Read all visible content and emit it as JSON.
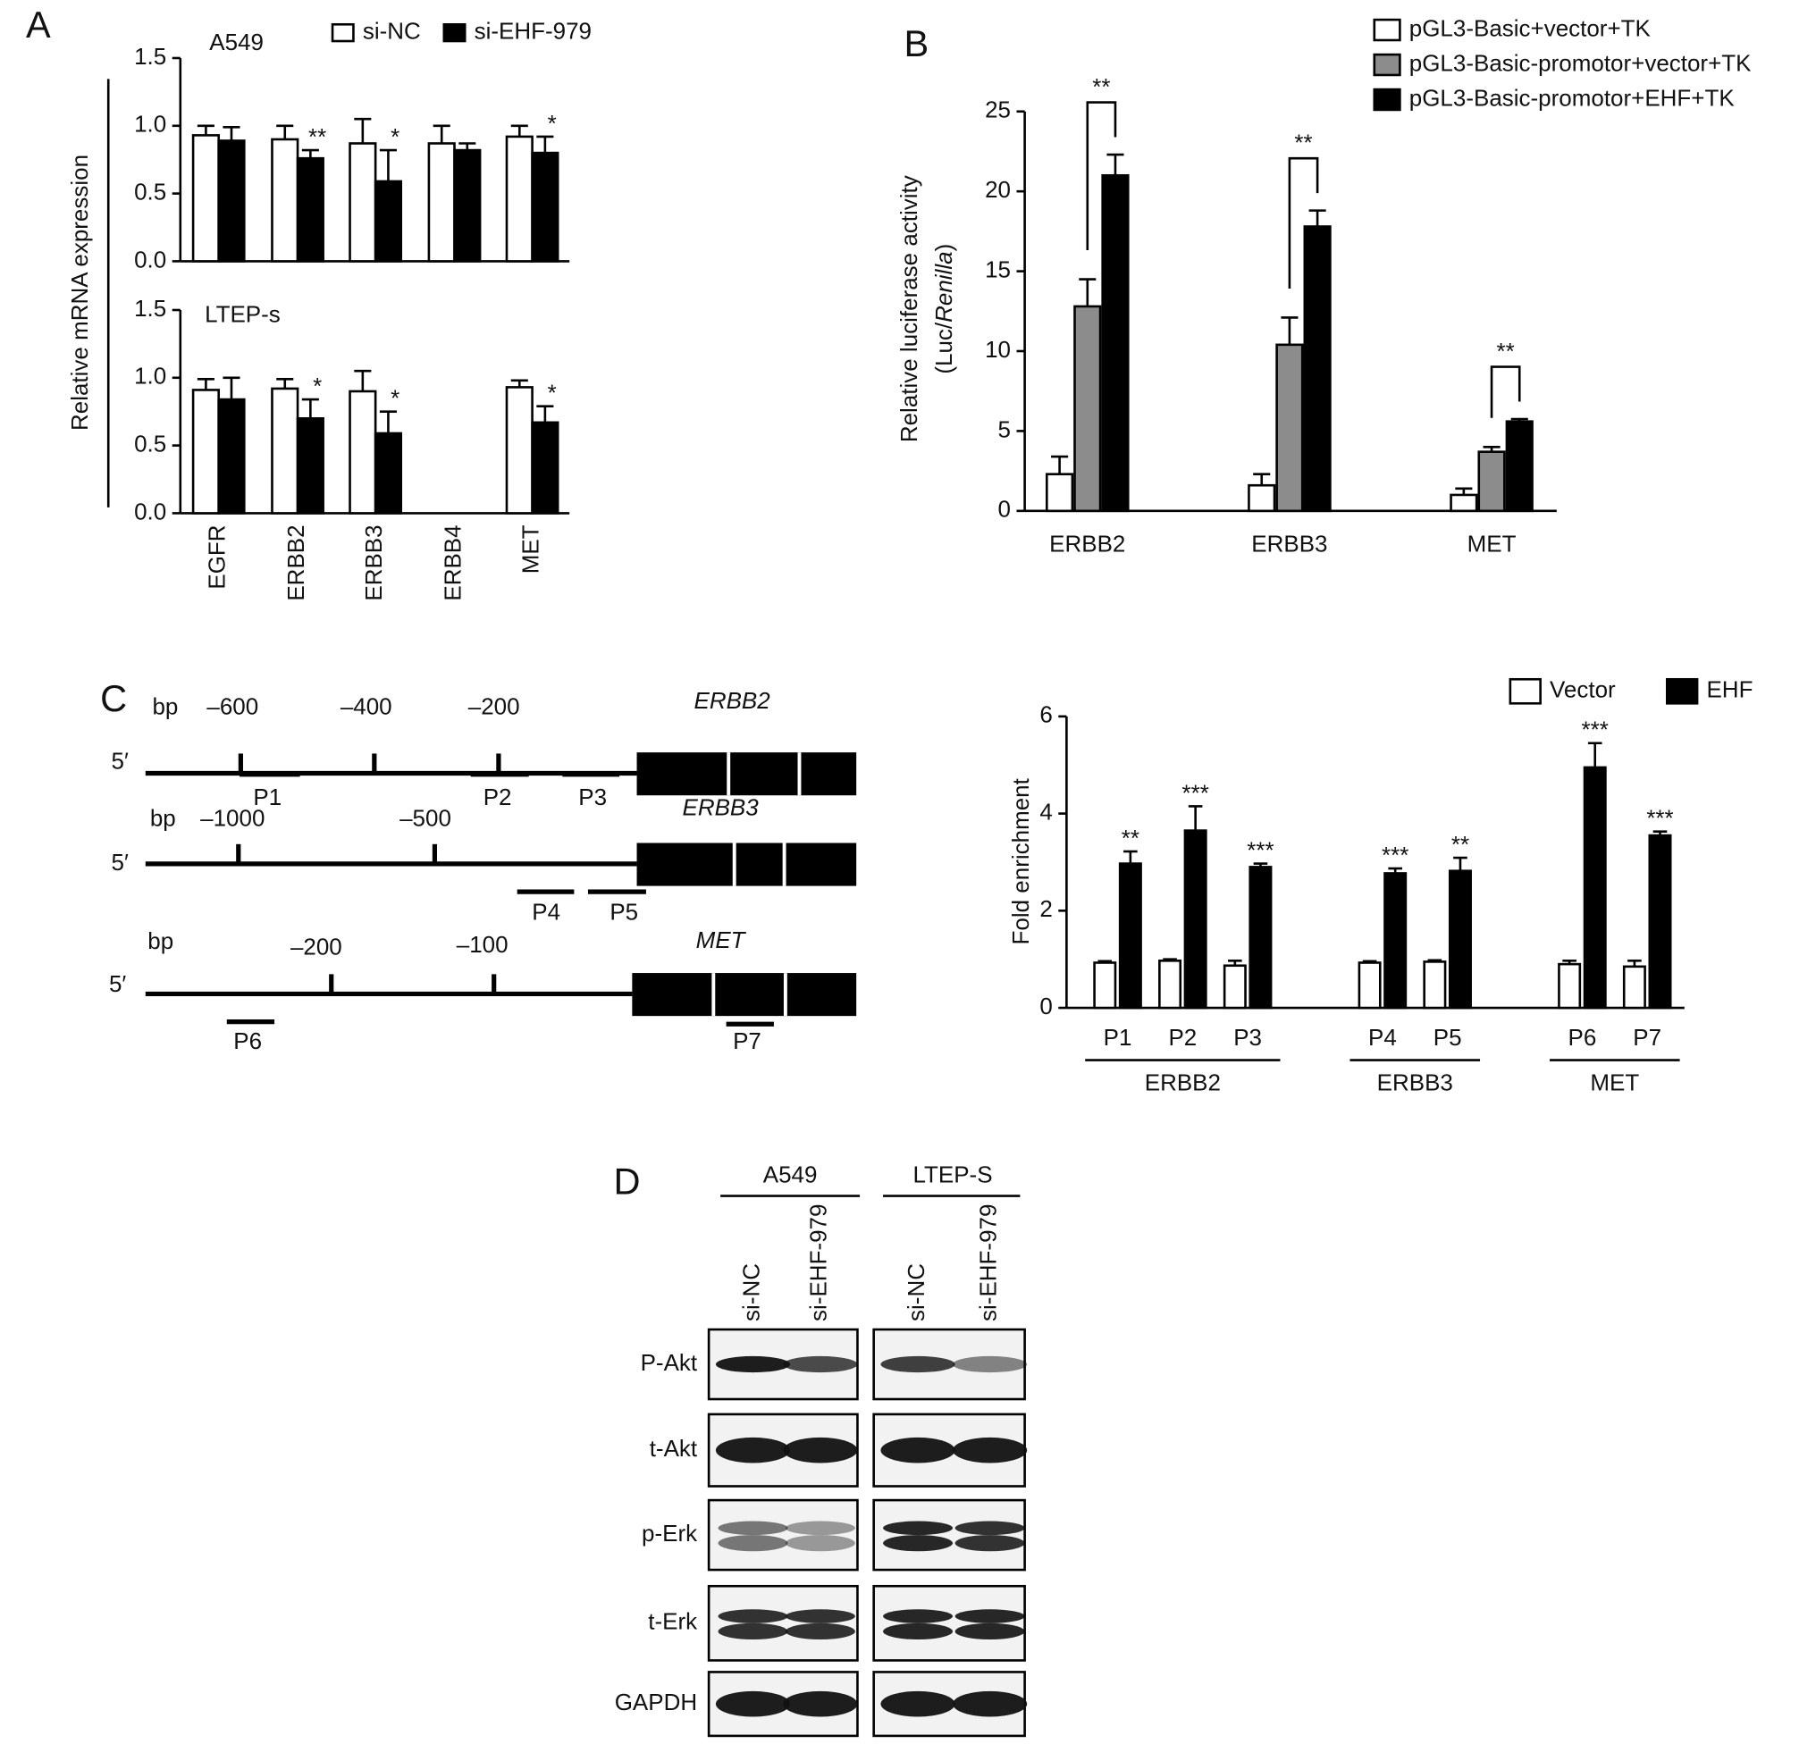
{
  "panel_labels": [
    "A",
    "B",
    "C",
    "D"
  ],
  "chart_data": [
    {
      "type": "bar",
      "title": "A549",
      "ylabel": "Relative mRNA expression",
      "series": [
        {
          "name": "si-NC",
          "color": "#ffffff",
          "values": [
            0.93,
            0.9,
            0.87,
            0.87,
            0.92
          ],
          "errors": [
            0.07,
            0.1,
            0.18,
            0.13,
            0.08
          ]
        },
        {
          "name": "si-EHF-979",
          "color": "#000000",
          "values": [
            0.89,
            0.76,
            0.59,
            0.82,
            0.8
          ],
          "errors": [
            0.1,
            0.06,
            0.23,
            0.05,
            0.12
          ]
        }
      ],
      "significance": [
        null,
        "**",
        "*",
        null,
        "*"
      ],
      "ylim": [
        0,
        1.5
      ],
      "yticks": [
        {
          "value": 0,
          "label": "0.0"
        },
        0.5,
        {
          "value": 1,
          "label": "1.0"
        },
        1.5
      ]
    },
    {
      "type": "bar",
      "title": "LTEP-s",
      "categories": [
        "EGFR",
        "ERBB2",
        "ERBB3",
        "ERBB4",
        "MET"
      ],
      "series": [
        {
          "color": "#ffffff",
          "values": [
            0.91,
            0.92,
            0.9,
            null,
            0.93
          ],
          "errors": [
            0.08,
            0.07,
            0.15,
            null,
            0.05
          ]
        },
        {
          "color": "#000000",
          "values": [
            0.84,
            0.7,
            0.59,
            null,
            0.67
          ],
          "errors": [
            0.16,
            0.14,
            0.16,
            null,
            0.12
          ]
        }
      ],
      "significance": [
        null,
        "*",
        "*",
        null,
        "*"
      ],
      "ylim": [
        0,
        1.5
      ],
      "yticks": [
        {
          "value": 0,
          "label": "0.0"
        },
        0.5,
        {
          "value": 1,
          "label": "1.0"
        },
        1.5
      ]
    },
    {
      "type": "bar",
      "ylabel": "Relative luciferase activity",
      "ylabel_unit": [
        "(Luc/",
        "Renilla",
        ")"
      ],
      "categories": [
        "ERBB2",
        "ERBB3",
        "MET"
      ],
      "series": [
        {
          "name": "pGL3-Basic+vector+TK",
          "color": "#ffffff",
          "values": [
            2.3,
            1.6,
            1.0
          ],
          "errors": [
            1.1,
            0.7,
            0.4
          ]
        },
        {
          "name": "pGL3-Basic-promotor+vector+TK",
          "color": "#8c8c8c",
          "values": [
            12.8,
            10.4,
            3.7
          ],
          "errors": [
            1.7,
            1.7,
            0.3
          ]
        },
        {
          "name": "pGL3-Basic-promotor+EHF+TK",
          "color": "#000000",
          "values": [
            21,
            17.8,
            5.6
          ],
          "errors": [
            1.3,
            1.0,
            0.15
          ]
        }
      ],
      "significance": [
        "**",
        "**",
        "**"
      ],
      "ylim": [
        0,
        25
      ],
      "yticks": [
        0,
        5,
        10,
        15,
        20,
        25
      ]
    },
    {
      "type": "bar",
      "ylabel": "Fold enrichment",
      "groups": [
        {
          "name": "ERBB2",
          "categories": [
            "P1",
            "P2",
            "P3"
          ]
        },
        {
          "name": "ERBB3",
          "categories": [
            "P4",
            "P5"
          ]
        },
        {
          "name": "MET",
          "categories": [
            "P6",
            "P7"
          ]
        }
      ],
      "series": [
        {
          "name": "Vector",
          "color": "#ffffff",
          "values": [
            0.93,
            0.97,
            0.87,
            0.93,
            0.95,
            0.9,
            0.85
          ],
          "errors": [
            0.03,
            0.03,
            0.1,
            0.03,
            0.03,
            0.07,
            0.12
          ]
        },
        {
          "name": "EHF",
          "color": "#000000",
          "values": [
            2.97,
            3.65,
            2.9,
            2.77,
            2.82,
            4.95,
            3.55
          ],
          "errors": [
            0.25,
            0.5,
            0.07,
            0.1,
            0.27,
            0.5,
            0.08
          ]
        }
      ],
      "significance": [
        "**",
        "***",
        "***",
        "***",
        "**",
        "***",
        "***"
      ],
      "ylim": [
        0,
        6
      ],
      "yticks": [
        0,
        2,
        4,
        6
      ]
    }
  ],
  "promoter_maps": [
    {
      "gene": "ERBB2",
      "unit": "bp",
      "end": "5′",
      "ticks": [
        "–600",
        "–400",
        "–200"
      ],
      "primers": [
        "P1",
        "P2",
        "P3"
      ]
    },
    {
      "gene": "ERBB3",
      "unit": "bp",
      "end": "5′",
      "ticks": [
        "–1000",
        "–500"
      ],
      "primers": [
        "P4",
        "P5"
      ]
    },
    {
      "gene": "MET",
      "unit": "bp",
      "end": "5′",
      "ticks": [
        "–200",
        "–100"
      ],
      "primers": [
        "P6",
        "P7"
      ]
    }
  ],
  "blot": {
    "groups": [
      {
        "name": "A549",
        "lanes": [
          "si-NC",
          "si-EHF-979"
        ]
      },
      {
        "name": "LTEP-S",
        "lanes": [
          "si-NC",
          "si-EHF-979"
        ]
      }
    ],
    "rows": [
      "P-Akt",
      "t-Akt",
      "p-Erk",
      "t-Erk",
      "GAPDH"
    ]
  }
}
